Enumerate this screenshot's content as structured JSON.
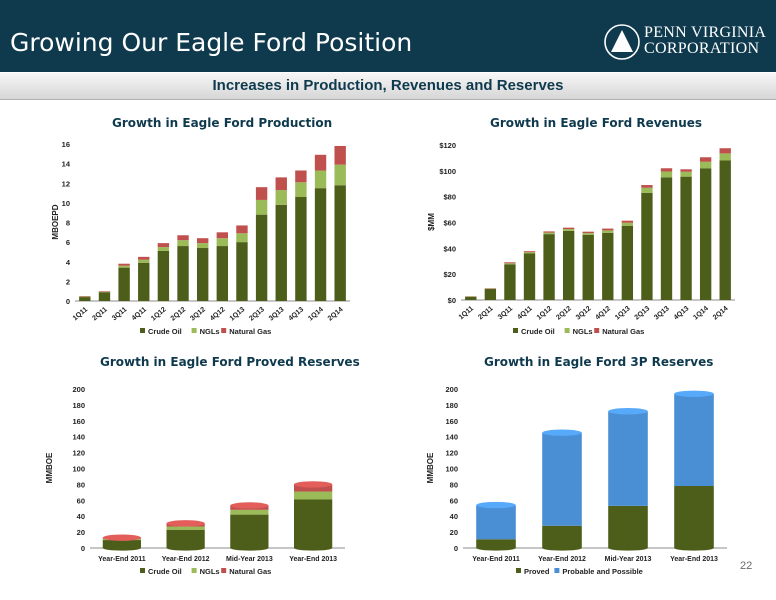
{
  "slide": {
    "title": "Growing Our Eagle Ford Position",
    "subtitle": "Increases in Production, Revenues and Reserves",
    "logo_line1": "PENN VIRGINIA",
    "logo_line2": "CORPORATION",
    "page_number": "22"
  },
  "colors": {
    "crude": "#4d5e1b",
    "ngl": "#9bbb59",
    "gas": "#c0504d",
    "proved": "#4d5e1b",
    "probable": "#4a8fd4",
    "header": "#0f3a4e"
  },
  "chart_data": [
    {
      "type": "bar",
      "title": "Growth in Eagle Ford Production",
      "ylabel": "MBOEPD",
      "ylim": [
        0,
        16
      ],
      "yticks": [
        "0",
        "2",
        "4",
        "6",
        "8",
        "10",
        "12",
        "14",
        "16"
      ],
      "categories": [
        "1Q11",
        "2Q11",
        "3Q11",
        "4Q11",
        "1Q12",
        "2Q12",
        "3Q12",
        "4Q12",
        "1Q13",
        "2Q13",
        "3Q13",
        "4Q13",
        "1Q14",
        "2Q14"
      ],
      "series": [
        {
          "name": "Crude Oil",
          "values": [
            0.4,
            0.9,
            3.4,
            3.9,
            5.1,
            5.6,
            5.4,
            5.6,
            6.0,
            8.8,
            9.8,
            10.6,
            11.5,
            11.8
          ]
        },
        {
          "name": "NGLs",
          "values": [
            0.05,
            0.05,
            0.2,
            0.3,
            0.4,
            0.6,
            0.5,
            0.8,
            0.9,
            1.5,
            1.5,
            1.5,
            1.8,
            2.1
          ]
        },
        {
          "name": "Natural Gas",
          "values": [
            0.05,
            0.05,
            0.2,
            0.3,
            0.4,
            0.5,
            0.5,
            0.6,
            0.8,
            1.3,
            1.3,
            1.2,
            1.6,
            1.9
          ]
        }
      ],
      "legend": "bottom"
    },
    {
      "type": "bar",
      "title": "Growth in Eagle Ford Revenues",
      "ylabel": "$MM",
      "ylim": [
        0,
        120
      ],
      "yticks": [
        "$0",
        "$20",
        "$40",
        "$60",
        "$80",
        "$100",
        "$120"
      ],
      "categories": [
        "1Q11",
        "2Q11",
        "3Q11",
        "4Q11",
        "1Q12",
        "2Q12",
        "3Q12",
        "4Q12",
        "1Q13",
        "2Q13",
        "3Q13",
        "4Q13",
        "1Q14",
        "2Q14"
      ],
      "series": [
        {
          "name": "Crude Oil",
          "values": [
            2.5,
            8.5,
            27.5,
            36.0,
            51.0,
            53.5,
            50.5,
            52.0,
            57.5,
            83.0,
            95.0,
            95.5,
            102.0,
            108.0
          ]
        },
        {
          "name": "NGLs",
          "values": [
            0.2,
            0.3,
            0.9,
            1.0,
            1.2,
            1.4,
            1.3,
            1.9,
            2.3,
            3.9,
            4.5,
            3.8,
            5.0,
            5.5
          ]
        },
        {
          "name": "Natural Gas",
          "values": [
            0.2,
            0.3,
            0.8,
            0.8,
            0.9,
            1.1,
            1.1,
            1.4,
            1.6,
            2.1,
            2.5,
            1.9,
            3.5,
            4.0
          ]
        }
      ],
      "legend": "bottom"
    },
    {
      "type": "bar",
      "title": "Growth in Eagle Ford Proved Reserves",
      "ylabel": "MMBOE",
      "ylim": [
        0,
        200
      ],
      "yticks": [
        "0",
        "20",
        "40",
        "60",
        "80",
        "100",
        "120",
        "140",
        "160",
        "180",
        "200"
      ],
      "categories": [
        "Year-End 2011",
        "Year-End 2012",
        "Mid-Year 2013",
        "Year-End 2013"
      ],
      "series": [
        {
          "name": "Crude Oil",
          "values": [
            10.0,
            23.0,
            42.0,
            61.0
          ]
        },
        {
          "name": "NGLs",
          "values": [
            1.5,
            4.0,
            6.0,
            10.0
          ]
        },
        {
          "name": "Natural Gas",
          "values": [
            1.5,
            4.0,
            5.5,
            9.0
          ]
        }
      ],
      "legend": "bottom"
    },
    {
      "type": "bar",
      "title": "Growth in Eagle Ford 3P Reserves",
      "ylabel": "MMBOE",
      "ylim": [
        0,
        200
      ],
      "yticks": [
        "0",
        "20",
        "40",
        "60",
        "80",
        "100",
        "120",
        "140",
        "160",
        "180",
        "200"
      ],
      "categories": [
        "Year-End 2011",
        "Year-End 2012",
        "Mid-Year 2013",
        "Year-End 2013"
      ],
      "series": [
        {
          "name": "Proved",
          "values": [
            11.0,
            28.0,
            53.0,
            78.0
          ]
        },
        {
          "name": "Probable and Possible",
          "values": [
            43.0,
            117.0,
            119.0,
            116.0
          ]
        }
      ],
      "legend": "bottom"
    }
  ]
}
